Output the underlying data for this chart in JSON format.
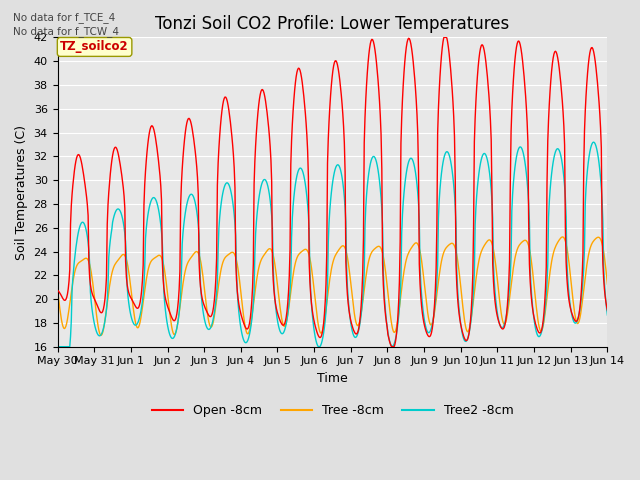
{
  "title": "Tonzi Soil CO2 Profile: Lower Temperatures",
  "ylabel": "Soil Temperatures (C)",
  "xlabel": "Time",
  "annotation1": "No data for f_TCE_4",
  "annotation2": "No data for f_TCW_4",
  "watermark": "TZ_soilco2",
  "legend_labels": [
    "Open -8cm",
    "Tree -8cm",
    "Tree2 -8cm"
  ],
  "legend_colors": [
    "#ff0000",
    "#ffa500",
    "#00cccc"
  ],
  "ylim": [
    16,
    42
  ],
  "yticks": [
    16,
    18,
    20,
    22,
    24,
    26,
    28,
    30,
    32,
    34,
    36,
    38,
    40,
    42
  ],
  "xtick_labels": [
    "May 30",
    "May 31",
    "Jun 1",
    "Jun 2",
    "Jun 3",
    "Jun 4",
    "Jun 5",
    "Jun 6",
    "Jun 7",
    "Jun 8",
    "Jun 9",
    "Jun 10",
    "Jun 11",
    "Jun 12",
    "Jun 13",
    "Jun 14"
  ],
  "background_color": "#e0e0e0",
  "plot_bg_color": "#e8e8e8",
  "grid_color": "#ffffff",
  "title_fontsize": 12,
  "label_fontsize": 9,
  "tick_fontsize": 8
}
